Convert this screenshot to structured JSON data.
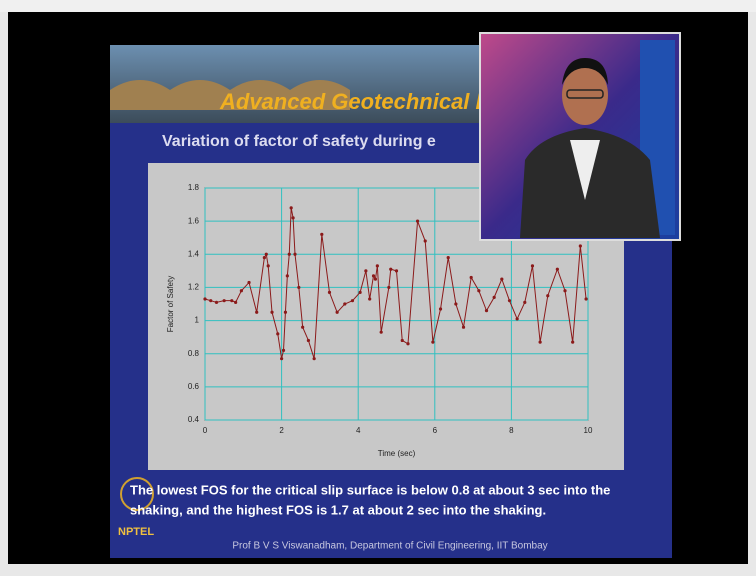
{
  "slide": {
    "banner": "Advanced Geotechnical Eng",
    "subtitle": "Variation of factor of safety during e",
    "caption": [
      "The lowest FOS for the critical slip surface is below 0.8 at about 3 sec into the",
      "shaking, and the highest  FOS is 1.7 at about 2 sec into the shaking."
    ],
    "logo": "NPTEL",
    "footer": "Prof B V S Viswanadham, Department of Civil Engineering, IIT Bombay"
  },
  "chart_data": {
    "type": "line",
    "xlabel": "Time (sec)",
    "ylabel": "Factor of Safety",
    "color": "#8b1a1a",
    "grid": true,
    "x": [
      0,
      0.15,
      0.3,
      0.5,
      0.7,
      0.8,
      0.95,
      1.15,
      1.35,
      1.55,
      1.6,
      1.65,
      1.75,
      1.9,
      2.0,
      2.05,
      2.1,
      2.15,
      2.2,
      2.25,
      2.3,
      2.35,
      2.45,
      2.55,
      2.7,
      2.85,
      3.05,
      3.25,
      3.45,
      3.65,
      3.85,
      4.05,
      4.2,
      4.3,
      4.4,
      4.45,
      4.5,
      4.6,
      4.8,
      4.85,
      5.0,
      5.15,
      5.3,
      5.55,
      5.75,
      5.95,
      6.15,
      6.35,
      6.55,
      6.75,
      6.95,
      7.15,
      7.35,
      7.55,
      7.75,
      7.95,
      8.15,
      8.35,
      8.55,
      8.75,
      8.95,
      9.2,
      9.4,
      9.6,
      9.8,
      9.95
    ],
    "values": [
      1.13,
      1.12,
      1.11,
      1.12,
      1.12,
      1.11,
      1.18,
      1.23,
      1.05,
      1.38,
      1.4,
      1.33,
      1.05,
      0.92,
      0.77,
      0.82,
      1.05,
      1.27,
      1.4,
      1.68,
      1.62,
      1.4,
      1.2,
      0.96,
      0.88,
      0.77,
      1.52,
      1.17,
      1.05,
      1.1,
      1.12,
      1.17,
      1.3,
      1.13,
      1.27,
      1.25,
      1.33,
      0.93,
      1.2,
      1.31,
      1.3,
      0.88,
      0.86,
      1.6,
      1.48,
      0.87,
      1.07,
      1.38,
      1.1,
      0.96,
      1.26,
      1.18,
      1.06,
      1.14,
      1.25,
      1.12,
      1.01,
      1.11,
      1.33,
      0.87,
      1.15,
      1.31,
      1.18,
      0.87,
      1.45,
      1.13
    ],
    "xlim": [
      0,
      10
    ],
    "xticks": [
      0,
      2,
      4,
      6,
      8,
      10
    ],
    "ylim": [
      0.4,
      1.8
    ],
    "yticks": [
      0.4,
      0.6,
      0.8,
      1,
      1.2,
      1.4,
      1.6,
      1.8
    ]
  }
}
